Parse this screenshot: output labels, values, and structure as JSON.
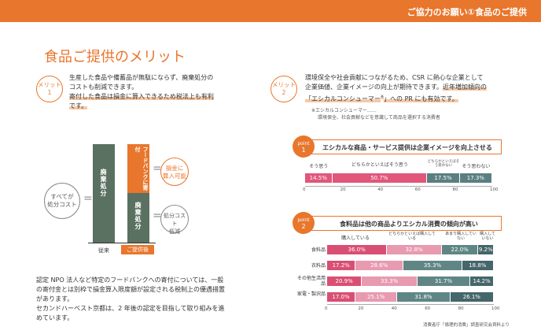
{
  "header": {
    "title": "ご協力のお願い①食品のご提供"
  },
  "page_title": "食品ご提供のメリット",
  "merit1": {
    "badge_line1": "メリット",
    "badge_line2": "1",
    "line1": "生産した食品や備蓄品が無駄にならず、廃棄処分の",
    "line2": "コストも削減できます。",
    "line3a": "寄付した食品は損金に算入できるため税法上も有利",
    "line4a": "です。"
  },
  "merit2": {
    "badge_line1": "メリット",
    "badge_line2": "2",
    "line1": "環境保全や社会貢献につながるため、CSR に熱心な企業として",
    "line2": "企業価値、企業イメージの向上が期待できます。",
    "line2b": "近年増加傾向の",
    "line3a": "「エシカルコンシューマー",
    "line3sup": "※",
    "line3b": "」への PR にも有効です。",
    "note1": "※エシカルコンシューマー……",
    "note2": "環境保全、社会貢献などを意識して商品を選択する消費者"
  },
  "diagram": {
    "total_cost_line1": "すべてが",
    "total_cost_line2": "処分コスト",
    "bar1_text": "廃棄処分",
    "bar2_top_text": "フードバンクに寄付",
    "bar2_bottom_text": "廃棄処分",
    "deduct_line1": "損金に",
    "deduct_line2": "算入可能",
    "reduce_line1": "処分コスト",
    "reduce_line2": "低減",
    "label_before": "従来",
    "label_after": "ご提供後",
    "eq": "="
  },
  "body": {
    "line1": "認定 NPO 法人など特定のフードバンクへの寄付については、一般",
    "line2": "の寄付金とは別枠で損金算入限度額が設定される税制上の優遇措置",
    "line3": "があります。",
    "line4": "セカンドハーベスト京都は、2 年後の認定を目指して取り組みを進",
    "line5": "めています。"
  },
  "chart_data": [
    {
      "type": "bar",
      "orientation": "horizontal-stacked",
      "point_label": "point",
      "point_num": "1",
      "title": "エシカルな商品・サービス提供は企業イメージを向上させる",
      "categories_row": [
        "そう思う",
        "どちらかといえばそう思う",
        "どちらかといえばそう思わない",
        "そう思わない"
      ],
      "series": [
        {
          "name": "そう思う",
          "value": 14.5,
          "label": "14.5%",
          "color": "#e0577a"
        },
        {
          "name": "どちらかといえばそう思う",
          "value": 50.7,
          "label": "50.7%",
          "color": "#e0577a"
        },
        {
          "name": "どちらかといえばそう思わない",
          "value": 17.5,
          "label": "17.5%",
          "color": "#5a7f82"
        },
        {
          "name": "そう思わない",
          "value": 17.3,
          "label": "17.3%",
          "color": "#5a7f82"
        }
      ],
      "xlim": [
        0,
        100
      ],
      "ticks": [
        "0",
        "20",
        "40",
        "60",
        "80",
        "100"
      ]
    },
    {
      "type": "bar",
      "orientation": "horizontal-stacked",
      "point_label": "point",
      "point_num": "2",
      "title": "食料品は他の商品よりエシカル消費の傾向が高い",
      "legend": [
        "購入している",
        "どちらかといえば購入している",
        "あまり購入していない",
        "購入していない"
      ],
      "rows": [
        {
          "label": "食料品",
          "values": [
            36.0,
            32.8,
            22.0,
            9.2
          ],
          "labels": [
            "36.0%",
            "32.8%",
            "22.0%",
            "9.2%"
          ]
        },
        {
          "label": "衣料品",
          "values": [
            17.2,
            28.6,
            35.3,
            18.8
          ],
          "labels": [
            "17.2%",
            "28.6%",
            "35.3%",
            "18.8%"
          ]
        },
        {
          "label": "その他生活用品",
          "values": [
            20.9,
            33.3,
            31.7,
            14.2
          ],
          "labels": [
            "20.9%",
            "33.3%",
            "31.7%",
            "14.2%"
          ]
        },
        {
          "label": "家電・製沢品",
          "values": [
            17.0,
            25.1,
            31.8,
            26.1
          ],
          "labels": [
            "17.0%",
            "25.1%",
            "31.8%",
            "26.1%"
          ]
        }
      ],
      "colors": [
        "#d94f73",
        "#e79ab0",
        "#5f8685",
        "#45666a"
      ],
      "xlim": [
        0,
        100
      ],
      "ticks": [
        "0",
        "20",
        "40",
        "60",
        "80",
        "100"
      ],
      "source": "消費者庁「倫理的消費」調査研究会資料より"
    }
  ]
}
